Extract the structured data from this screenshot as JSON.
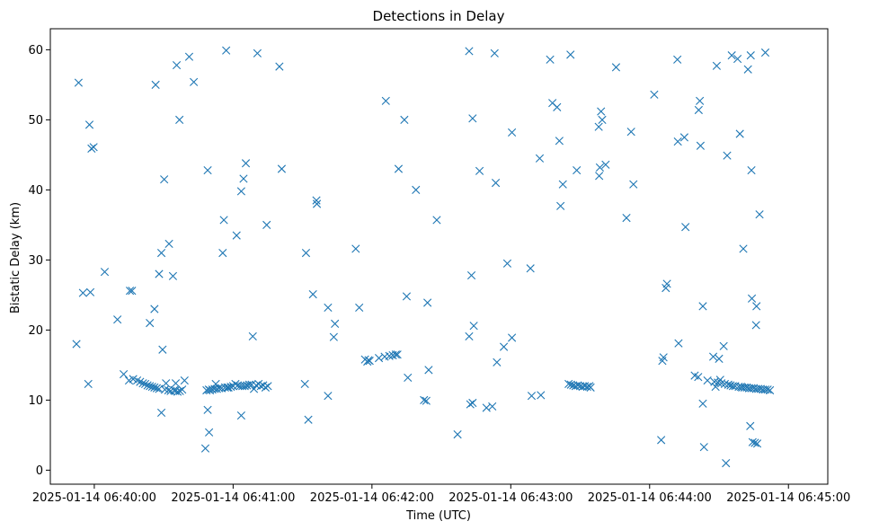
{
  "chart_data": {
    "type": "scatter",
    "title": "Detections in Delay",
    "xlabel": "Time (UTC)",
    "ylabel": "Bistatic Delay (km)",
    "xlim": [
      -19,
      317
    ],
    "ylim": [
      -2,
      63
    ],
    "x_unit": "seconds after 2025-01-14 06:40:00",
    "x_ticks": [
      {
        "value": 0,
        "label": "2025-01-14 06:40:00"
      },
      {
        "value": 60,
        "label": "2025-01-14 06:41:00"
      },
      {
        "value": 120,
        "label": "2025-01-14 06:42:00"
      },
      {
        "value": 180,
        "label": "2025-01-14 06:43:00"
      },
      {
        "value": 240,
        "label": "2025-01-14 06:44:00"
      },
      {
        "value": 300,
        "label": "2025-01-14 06:45:00"
      }
    ],
    "y_ticks": [
      {
        "value": 0,
        "label": "0"
      },
      {
        "value": 10,
        "label": "10"
      },
      {
        "value": 20,
        "label": "20"
      },
      {
        "value": 30,
        "label": "30"
      },
      {
        "value": 40,
        "label": "40"
      },
      {
        "value": 50,
        "label": "50"
      },
      {
        "value": 60,
        "label": "60"
      }
    ],
    "grid": false,
    "series": [
      {
        "name": "Detections",
        "marker": "x",
        "color": "#1f77b4",
        "points": [
          [
            -7.7,
            18
          ],
          [
            -6.8,
            55.3
          ],
          [
            -4.9,
            25.3
          ],
          [
            -2.6,
            12.3
          ],
          [
            -2.1,
            49.3
          ],
          [
            -1.7,
            25.4
          ],
          [
            -1.2,
            45.9
          ],
          [
            -0.3,
            46.1
          ],
          [
            4.5,
            28.3
          ],
          [
            10,
            21.5
          ],
          [
            12.7,
            13.7
          ],
          [
            15,
            12.8
          ],
          [
            15.4,
            25.6
          ],
          [
            16.3,
            25.6
          ],
          [
            16.8,
            13.0
          ],
          [
            18.5,
            12.8
          ],
          [
            19.8,
            12.6
          ],
          [
            21,
            12.4
          ],
          [
            22,
            12.3
          ],
          [
            23,
            12.1
          ],
          [
            24,
            21
          ],
          [
            24,
            12
          ],
          [
            25,
            11.9
          ],
          [
            26,
            23
          ],
          [
            26,
            11.8
          ],
          [
            26.5,
            55
          ],
          [
            27,
            11.7
          ],
          [
            28,
            28
          ],
          [
            28,
            11.6
          ],
          [
            29,
            31
          ],
          [
            29,
            8.2
          ],
          [
            29.5,
            17.2
          ],
          [
            30.2,
            41.5
          ],
          [
            30.5,
            11.5
          ],
          [
            31,
            12.4
          ],
          [
            32,
            11.4
          ],
          [
            32.3,
            32.3
          ],
          [
            33,
            11.3
          ],
          [
            34,
            27.7
          ],
          [
            34.5,
            11.4
          ],
          [
            35,
            11.3
          ],
          [
            35.2,
            12.4
          ],
          [
            35.6,
            57.8
          ],
          [
            36,
            11.2
          ],
          [
            36.8,
            50
          ],
          [
            37,
            11.3
          ],
          [
            38,
            11.5
          ],
          [
            39,
            12.8
          ],
          [
            41,
            59
          ],
          [
            43,
            55.4
          ],
          [
            48,
            3.1
          ],
          [
            48.5,
            11.4
          ],
          [
            49,
            42.8
          ],
          [
            49,
            8.6
          ],
          [
            49.5,
            11.5
          ],
          [
            49.6,
            5.4
          ],
          [
            50,
            11.4
          ],
          [
            51,
            11.5
          ],
          [
            52,
            11.6
          ],
          [
            52.5,
            12.3
          ],
          [
            53,
            11.6
          ],
          [
            54,
            11.7
          ],
          [
            55,
            11.7
          ],
          [
            55.5,
            31.0
          ],
          [
            56,
            35.7
          ],
          [
            56.5,
            11.8
          ],
          [
            57,
            59.9
          ],
          [
            57.5,
            11.8
          ],
          [
            58,
            11.8
          ],
          [
            59,
            11.9
          ],
          [
            60,
            12.0
          ],
          [
            61,
            12.3
          ],
          [
            61.5,
            33.5
          ],
          [
            62,
            12.1
          ],
          [
            63,
            12.0
          ],
          [
            63.5,
            39.8
          ],
          [
            63.5,
            7.8
          ],
          [
            64,
            12.0
          ],
          [
            64.5,
            41.6
          ],
          [
            65,
            12.0
          ],
          [
            65.5,
            43.8
          ],
          [
            66,
            12.1
          ],
          [
            67,
            12.2
          ],
          [
            68,
            12.2
          ],
          [
            68.5,
            19.1
          ],
          [
            69,
            11.6
          ],
          [
            70,
            12.1
          ],
          [
            70.5,
            59.5
          ],
          [
            71,
            12.3
          ],
          [
            72,
            12.0
          ],
          [
            73,
            12.1
          ],
          [
            74,
            11.8
          ],
          [
            74.5,
            35
          ],
          [
            75,
            12.0
          ],
          [
            80,
            57.6
          ],
          [
            81,
            43
          ],
          [
            91,
            12.3
          ],
          [
            91.5,
            31.0
          ],
          [
            92.5,
            7.2
          ],
          [
            94.5,
            25.1
          ],
          [
            96,
            38.5
          ],
          [
            96.2,
            38.0
          ],
          [
            101,
            23.2
          ],
          [
            101,
            10.6
          ],
          [
            103.5,
            19
          ],
          [
            104,
            20.9
          ],
          [
            113,
            31.6
          ],
          [
            114.5,
            23.2
          ],
          [
            117,
            15.8
          ],
          [
            118,
            15.5
          ],
          [
            118.5,
            15.7
          ],
          [
            119,
            15.6
          ],
          [
            123,
            16.0
          ],
          [
            125.5,
            16.2
          ],
          [
            126,
            52.7
          ],
          [
            127.5,
            16.3
          ],
          [
            129,
            16.4
          ],
          [
            130.3,
            16.5
          ],
          [
            131,
            16.5
          ],
          [
            131.5,
            43.0
          ],
          [
            134,
            50
          ],
          [
            135,
            24.8
          ],
          [
            135.5,
            13.2
          ],
          [
            139,
            40
          ],
          [
            142.5,
            10.0
          ],
          [
            143.5,
            9.9
          ],
          [
            144,
            23.9
          ],
          [
            144.5,
            14.3
          ],
          [
            148,
            35.7
          ],
          [
            157,
            5.1
          ],
          [
            162,
            59.8
          ],
          [
            162,
            19.1
          ],
          [
            162.5,
            9.4
          ],
          [
            163,
            27.8
          ],
          [
            163.5,
            9.6
          ],
          [
            163.5,
            50.2
          ],
          [
            164,
            20.6
          ],
          [
            166.5,
            42.7
          ],
          [
            169.5,
            8.9
          ],
          [
            172,
            9.1
          ],
          [
            173,
            59.5
          ],
          [
            173.5,
            41
          ],
          [
            174,
            15.4
          ],
          [
            177,
            17.6
          ],
          [
            178.5,
            29.5
          ],
          [
            180.5,
            48.2
          ],
          [
            180.5,
            18.9
          ],
          [
            188.5,
            28.8
          ],
          [
            189,
            10.6
          ],
          [
            192.5,
            44.5
          ],
          [
            193,
            10.7
          ],
          [
            197,
            58.6
          ],
          [
            198,
            52.4
          ],
          [
            200,
            51.8
          ],
          [
            201,
            47
          ],
          [
            201.5,
            37.7
          ],
          [
            202.5,
            40.8
          ],
          [
            205,
            12.3
          ],
          [
            205.8,
            59.3
          ],
          [
            206,
            12.2
          ],
          [
            207,
            12.1
          ],
          [
            208,
            12.0
          ],
          [
            208.5,
            42.8
          ],
          [
            209,
            12.1
          ],
          [
            210,
            12.0
          ],
          [
            211,
            11.9
          ],
          [
            212,
            12.0
          ],
          [
            213,
            11.9
          ],
          [
            214,
            12.0
          ],
          [
            214.5,
            11.8
          ],
          [
            218,
            49
          ],
          [
            218.2,
            42
          ],
          [
            218.5,
            43.2
          ],
          [
            219,
            51.2
          ],
          [
            219.5,
            50.0
          ],
          [
            221,
            43.6
          ],
          [
            225.5,
            57.5
          ],
          [
            230,
            36
          ],
          [
            232,
            48.3
          ],
          [
            233,
            40.8
          ],
          [
            242,
            53.6
          ],
          [
            245,
            4.3
          ],
          [
            245.5,
            15.6
          ],
          [
            246,
            16.1
          ],
          [
            247,
            26
          ],
          [
            247.5,
            26.6
          ],
          [
            252,
            58.6
          ],
          [
            252.2,
            46.9
          ],
          [
            252.5,
            18.1
          ],
          [
            255,
            47.5
          ],
          [
            255.5,
            34.7
          ],
          [
            259.5,
            13.5
          ],
          [
            261,
            13.3
          ],
          [
            261.2,
            51.4
          ],
          [
            261.7,
            52.7
          ],
          [
            262,
            46.3
          ],
          [
            263,
            23.4
          ],
          [
            263,
            9.5
          ],
          [
            263.5,
            3.3
          ],
          [
            265,
            12.8
          ],
          [
            267.5,
            16.2
          ],
          [
            268,
            12.6
          ],
          [
            268.5,
            11.9
          ],
          [
            269,
            57.7
          ],
          [
            269.5,
            12.5
          ],
          [
            270,
            15.9
          ],
          [
            270.5,
            12.9
          ],
          [
            271,
            12.4
          ],
          [
            272,
            17.7
          ],
          [
            272.5,
            12.3
          ],
          [
            273,
            1.0
          ],
          [
            273.5,
            44.9
          ],
          [
            274,
            12.2
          ],
          [
            275,
            12.1
          ],
          [
            275.5,
            59.2
          ],
          [
            276,
            12.0
          ],
          [
            277,
            12.0
          ],
          [
            278,
            58.7
          ],
          [
            278.5,
            11.9
          ],
          [
            279,
            48
          ],
          [
            279.5,
            11.9
          ],
          [
            280,
            11.8
          ],
          [
            280.5,
            31.6
          ],
          [
            281,
            11.8
          ],
          [
            282,
            11.8
          ],
          [
            282.5,
            57.2
          ],
          [
            283,
            11.7
          ],
          [
            283.5,
            6.3
          ],
          [
            283.7,
            59.2
          ],
          [
            284,
            42.8
          ],
          [
            284,
            11.7
          ],
          [
            284.2,
            24.5
          ],
          [
            284.5,
            4.0
          ],
          [
            285,
            11.7
          ],
          [
            285.5,
            3.9
          ],
          [
            286,
            11.6
          ],
          [
            286,
            20.7
          ],
          [
            286.2,
            23.4
          ],
          [
            286.5,
            3.8
          ],
          [
            287,
            11.6
          ],
          [
            287.5,
            36.5
          ],
          [
            288,
            11.6
          ],
          [
            289,
            11.5
          ],
          [
            290,
            59.6
          ],
          [
            290,
            11.5
          ],
          [
            291,
            11.5
          ],
          [
            292,
            11.4
          ]
        ]
      }
    ]
  }
}
